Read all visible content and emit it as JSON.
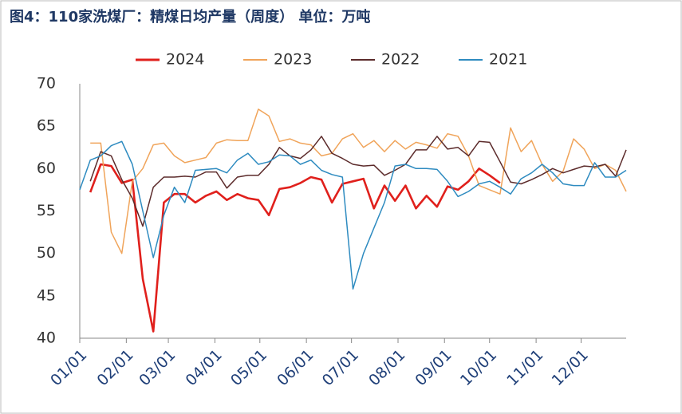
{
  "chart_data": {
    "type": "line",
    "title": "图4：110家洗煤厂：精煤日均产量（周度）  单位：万吨",
    "x": [
      0,
      1,
      2,
      3,
      4,
      5,
      6,
      7,
      8,
      9,
      10,
      11,
      12,
      13,
      14,
      15,
      16,
      17,
      18,
      19,
      20,
      21,
      22,
      23,
      24,
      25,
      26,
      27,
      28,
      29,
      30,
      31,
      32,
      33,
      34,
      35,
      36,
      37,
      38,
      39,
      40,
      41,
      42,
      43,
      44,
      45,
      46,
      47,
      48,
      49,
      50,
      51,
      52
    ],
    "xlim": [
      0,
      52
    ],
    "xticks": [
      {
        "value": 0,
        "label": "01/01"
      },
      {
        "value": 4.43,
        "label": "02/01"
      },
      {
        "value": 8.43,
        "label": "03/01"
      },
      {
        "value": 12.86,
        "label": "04/01"
      },
      {
        "value": 17.14,
        "label": "05/01"
      },
      {
        "value": 21.57,
        "label": "06/01"
      },
      {
        "value": 25.86,
        "label": "07/01"
      },
      {
        "value": 30.29,
        "label": "08/01"
      },
      {
        "value": 34.71,
        "label": "09/01"
      },
      {
        "value": 39,
        "label": "10/01"
      },
      {
        "value": 43.43,
        "label": "11/01"
      },
      {
        "value": 47.71,
        "label": "12/01"
      }
    ],
    "ylim": [
      40,
      70
    ],
    "yticks": [
      40,
      45,
      50,
      55,
      60,
      65,
      70
    ],
    "grid": false,
    "legend": "top",
    "series": [
      {
        "name": "2024",
        "color": "#e0201c",
        "width": 2.6,
        "values": [
          null,
          57.2,
          60.5,
          60.3,
          58.3,
          58.7,
          47,
          40.8,
          56,
          57,
          57,
          56,
          56.8,
          57.3,
          56.3,
          57,
          56.5,
          56.3,
          54.5,
          57.6,
          57.8,
          58.3,
          59,
          58.7,
          56,
          58.2,
          58.5,
          58.8,
          55.3,
          58,
          56.2,
          58,
          55.3,
          56.8,
          55.5,
          57.9,
          57.5,
          58.5,
          60,
          59.2,
          58.3,
          null,
          null,
          null,
          null,
          null,
          null,
          null,
          null,
          null,
          null,
          null,
          null
        ]
      },
      {
        "name": "2023",
        "color": "#f0a45a",
        "width": 1.5,
        "values": [
          null,
          63,
          63,
          52.5,
          50,
          58.5,
          60,
          62.8,
          63,
          61.5,
          60.7,
          61,
          61.3,
          63,
          63.4,
          63.3,
          63.3,
          67,
          66.2,
          63.2,
          63.5,
          63,
          62.8,
          61.5,
          61.8,
          63.5,
          64.1,
          62.5,
          63.3,
          62,
          63.3,
          62.3,
          63.1,
          62.8,
          62.4,
          64.1,
          63.8,
          61.5,
          58,
          57.5,
          57,
          64.8,
          62,
          63.3,
          60.5,
          58.5,
          59.7,
          63.5,
          62.3,
          60,
          60.5,
          59.8,
          57.3
        ]
      },
      {
        "name": "2022",
        "color": "#5c2b2b",
        "width": 1.5,
        "values": [
          null,
          58.5,
          62,
          61.5,
          58.7,
          56.5,
          53.2,
          57.8,
          59,
          59,
          59.1,
          59,
          59.6,
          59.6,
          57.7,
          59,
          59.2,
          59.2,
          60.5,
          62.5,
          61.5,
          61.2,
          62.2,
          63.8,
          61.8,
          61.2,
          60.5,
          60.3,
          60.4,
          59.2,
          59.8,
          60.5,
          62.2,
          62.2,
          63.8,
          62.3,
          62.5,
          61.5,
          63.2,
          63.1,
          60.8,
          58.4,
          58.2,
          58.7,
          59.3,
          60,
          59.5,
          59.9,
          60.3,
          60.2,
          60.5,
          59.1,
          62.2
        ]
      },
      {
        "name": "2021",
        "color": "#2e8bc0",
        "width": 1.5,
        "values": [
          57.5,
          61,
          61.5,
          62.7,
          63.2,
          60.5,
          55,
          49.5,
          54.5,
          57.8,
          56,
          59.8,
          59.9,
          60,
          59.5,
          61,
          61.8,
          60.5,
          60.8,
          61.6,
          61.5,
          60.5,
          61,
          59.8,
          59.3,
          59,
          45.8,
          50,
          53,
          56,
          60.3,
          60.5,
          60,
          60,
          59.9,
          58.5,
          56.7,
          57.3,
          58.2,
          58.5,
          57.8,
          57,
          58.8,
          59.5,
          60.5,
          59.5,
          58.2,
          58,
          58,
          60.7,
          59,
          59,
          59.8
        ]
      }
    ]
  }
}
